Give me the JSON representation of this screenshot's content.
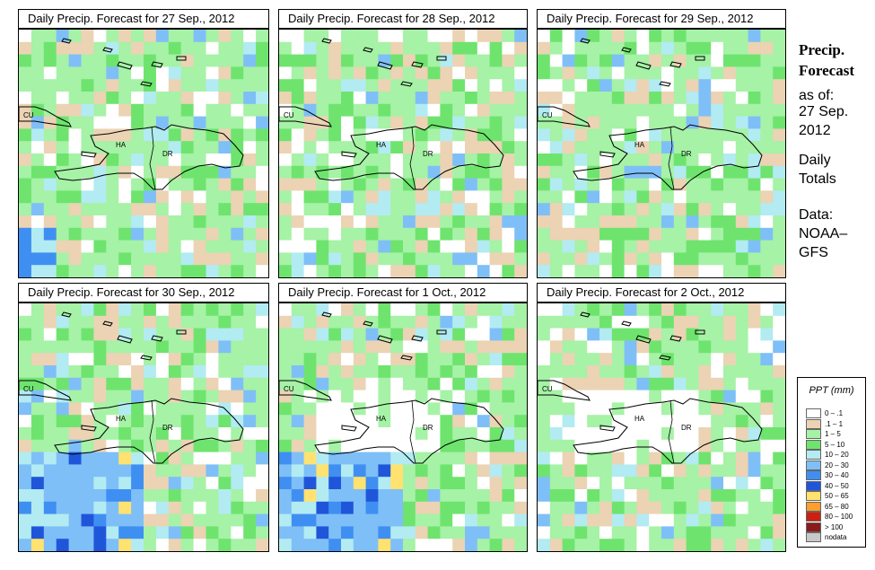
{
  "panels": [
    {
      "title": "Daily Precip. Forecast for  27 Sep., 2012"
    },
    {
      "title": "Daily Precip. Forecast for  28 Sep., 2012"
    },
    {
      "title": "Daily Precip. Forecast for  29 Sep., 2012"
    },
    {
      "title": "Daily Precip. Forecast for  30 Sep., 2012"
    },
    {
      "title": "Daily Precip. Forecast for   1 Oct., 2012"
    },
    {
      "title": "Daily Precip. Forecast for   2 Oct., 2012"
    }
  ],
  "map_labels": {
    "cuba": "CU",
    "haiti": "HA",
    "dominican_republic": "DR"
  },
  "sidebar": {
    "heading_line1": "Precip.",
    "heading_line2": "Forecast",
    "asof": "as of:",
    "date_line1": "27 Sep.",
    "date_line2": "2012",
    "totals_line1": "Daily",
    "totals_line2": "Totals",
    "data_line1": "Data:",
    "data_line2": "NOAA–",
    "data_line3": "GFS"
  },
  "legend": {
    "title": "PPT (mm)",
    "items": [
      {
        "label": "0 – .1",
        "color": "#ffffff"
      },
      {
        "label": ".1 – 1",
        "color": "#ebd3b4"
      },
      {
        "label": "1 – 5",
        "color": "#a6f2a6"
      },
      {
        "label": "5 – 10",
        "color": "#6ee46e"
      },
      {
        "label": "10 – 20",
        "color": "#b2ebf2"
      },
      {
        "label": "20 – 30",
        "color": "#7fbff7"
      },
      {
        "label": "30 – 40",
        "color": "#3f8ff2"
      },
      {
        "label": "40 – 50",
        "color": "#1f56d9"
      },
      {
        "label": "50 – 65",
        "color": "#ffe270"
      },
      {
        "label": "65 – 80",
        "color": "#ff9d2e"
      },
      {
        "label": "80 – 100",
        "color": "#cf1f0f"
      },
      {
        "label": "> 100",
        "color": "#8b1a1a"
      },
      {
        "label": "nodata",
        "color": "#c8c8c8"
      }
    ]
  }
}
